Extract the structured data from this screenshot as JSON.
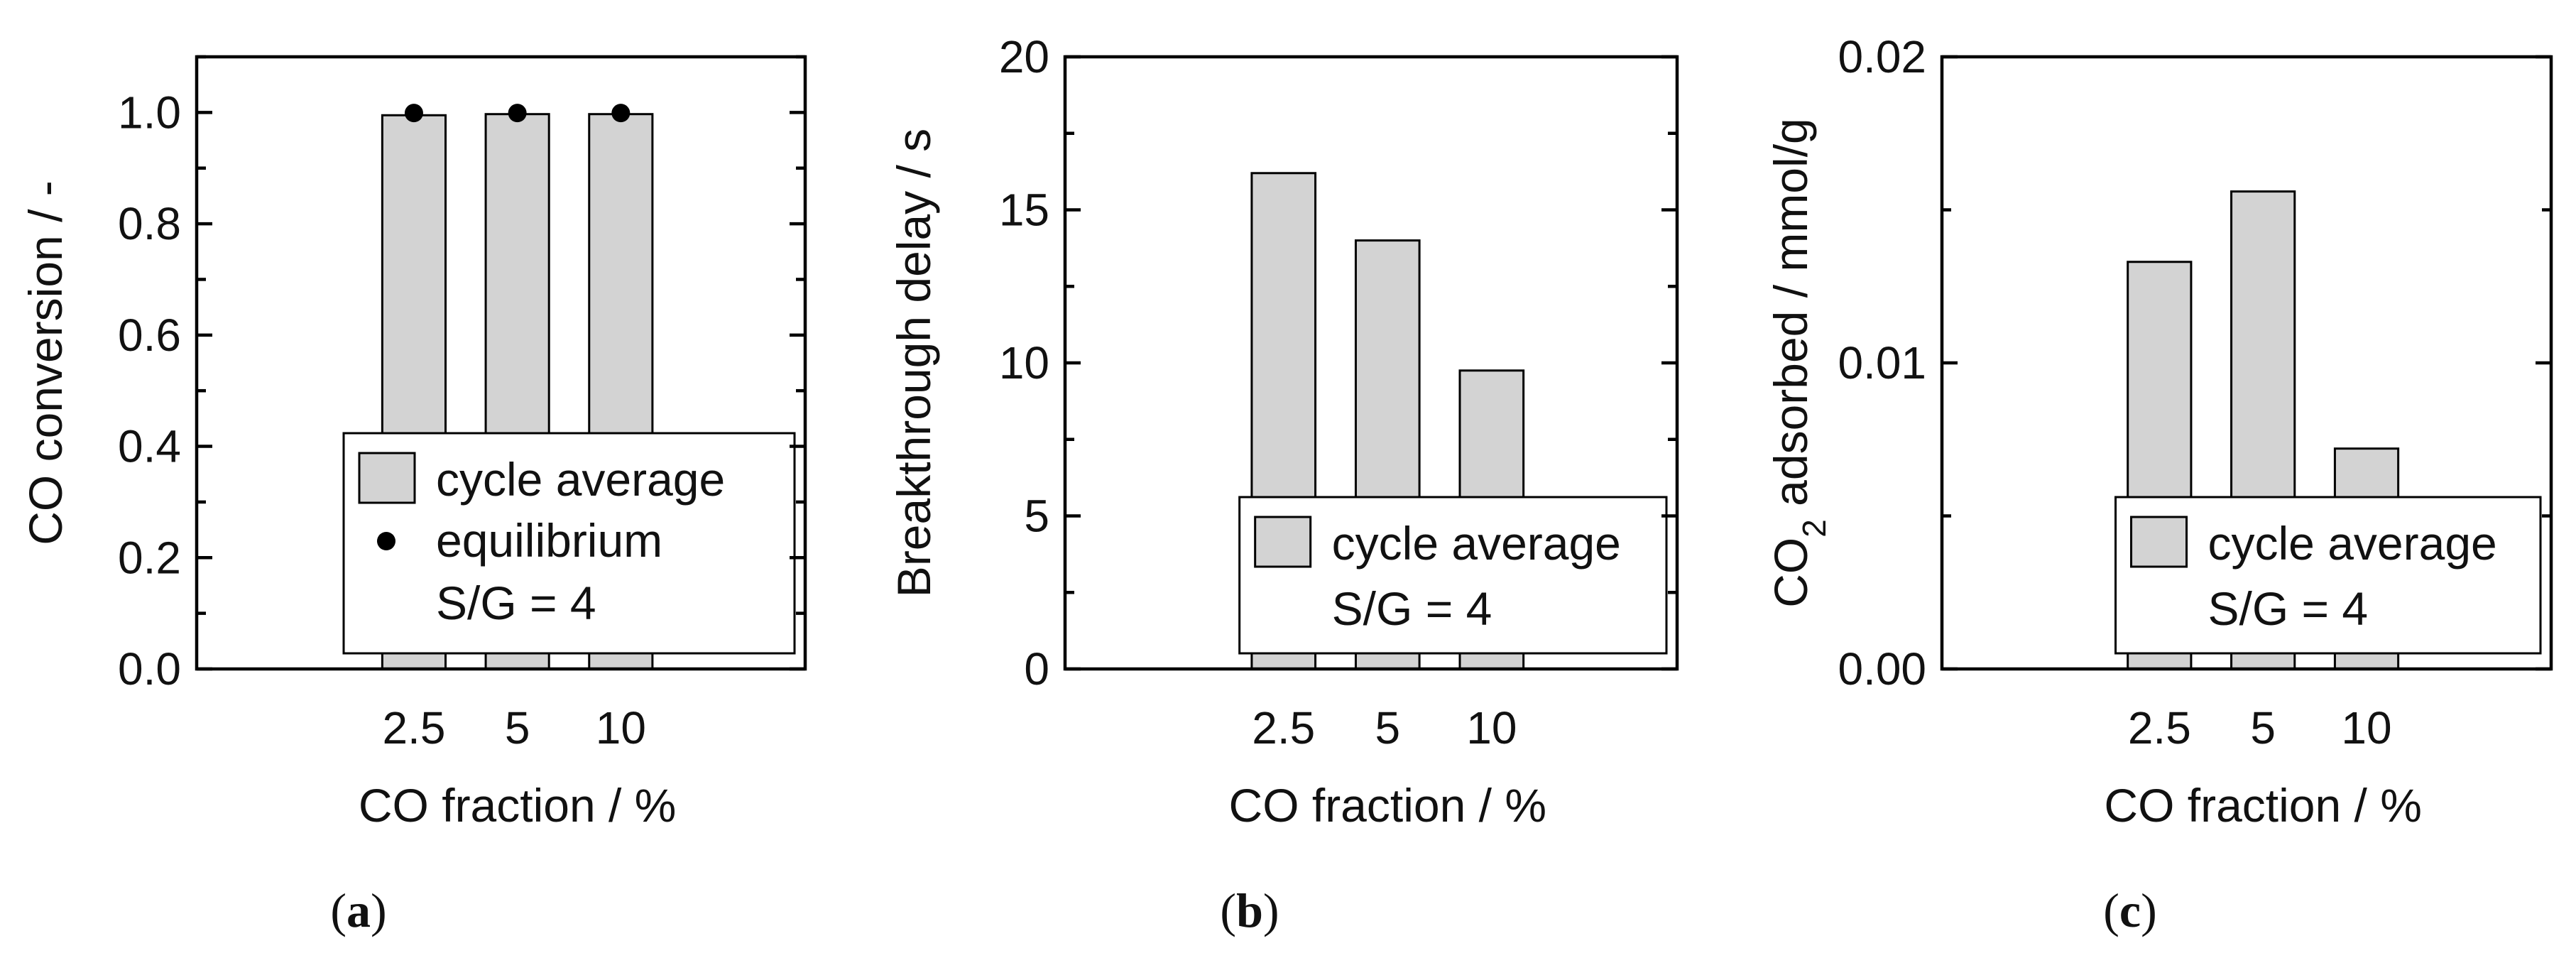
{
  "chart_data": [
    {
      "type": "bar",
      "panel_label": "a",
      "title": "",
      "xlabel": "CO fraction / %",
      "ylabel": "CO conversion / -",
      "ylabel_subscript": "",
      "ylabel_rest": "",
      "categories": [
        "2.5",
        "5",
        "10"
      ],
      "series": [
        {
          "name": "cycle average",
          "values": [
            0.995,
            0.997,
            0.997
          ]
        }
      ],
      "points": {
        "name": "equilibrium",
        "values": [
          0.999,
          0.999,
          0.999
        ]
      },
      "legend_note": "S/G = 4",
      "legend_position": "bottom-right",
      "ylim": [
        0,
        1.1
      ],
      "yticks": [
        0.0,
        0.2,
        0.4,
        0.6,
        0.8,
        1.0
      ],
      "ytick_labels": [
        "0.0",
        "0.2",
        "0.4",
        "0.6",
        "0.8",
        "1.0"
      ],
      "y_minor_step": 0.1,
      "grid": false
    },
    {
      "type": "bar",
      "panel_label": "b",
      "title": "",
      "xlabel": "CO fraction / %",
      "ylabel": "Breakthrough delay / s",
      "ylabel_subscript": "",
      "ylabel_rest": "",
      "categories": [
        "2.5",
        "5",
        "10"
      ],
      "series": [
        {
          "name": "cycle average",
          "values": [
            16.2,
            14.0,
            9.75
          ]
        }
      ],
      "legend_note": "S/G = 4",
      "legend_position": "bottom-right",
      "ylim": [
        0,
        20
      ],
      "yticks": [
        0,
        5,
        10,
        15,
        20
      ],
      "ytick_labels": [
        "0",
        "5",
        "10",
        "15",
        "20"
      ],
      "y_minor_step": 2.5,
      "grid": false
    },
    {
      "type": "bar",
      "panel_label": "c",
      "title": "",
      "xlabel": "CO fraction / %",
      "ylabel": "CO",
      "ylabel_subscript": "2",
      "ylabel_rest": " adsorbed / mmol/g",
      "categories": [
        "2.5",
        "5",
        "10"
      ],
      "series": [
        {
          "name": "cycle average",
          "values": [
            0.0133,
            0.0156,
            0.0072
          ]
        }
      ],
      "legend_note": "S/G = 4",
      "legend_position": "bottom-right",
      "ylim": [
        0,
        0.02
      ],
      "yticks": [
        0,
        0.01,
        0.02
      ],
      "ytick_labels": [
        "0.00",
        "0.01",
        "0.02"
      ],
      "y_minor_step": 0.005,
      "grid": false
    }
  ],
  "colors": {
    "bar_fill": "#d3d3d3",
    "stroke": "#000000",
    "point": "#000000"
  }
}
